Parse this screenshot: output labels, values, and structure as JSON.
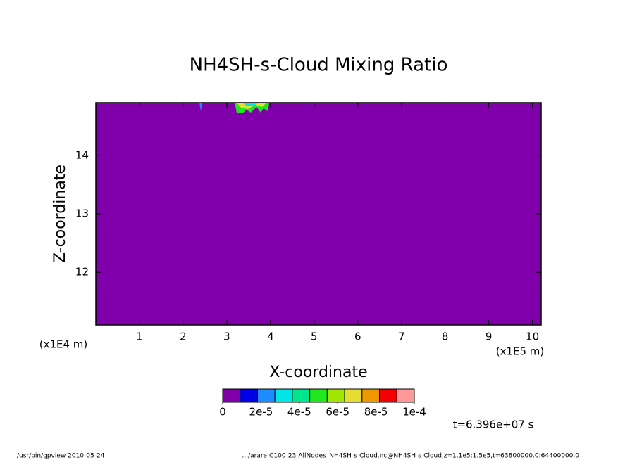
{
  "chart_data": {
    "type": "contour",
    "title": "NH4SH-s-Cloud Mixing Ratio",
    "x_label": "X-coordinate",
    "y_label": "Z-coordinate",
    "x_unit": "(x1E5 m)",
    "y_unit": "(x1E4 m)",
    "xlim": [
      0,
      10.2
    ],
    "ylim": [
      11.1,
      14.9
    ],
    "xticks": [
      1,
      2,
      3,
      4,
      5,
      6,
      7,
      8,
      9,
      10
    ],
    "yticks": [
      12,
      13,
      14
    ],
    "background_color": "#7f00aa",
    "colorbar": {
      "colors": [
        "#7f00aa",
        "#0000e6",
        "#1e8cff",
        "#00e6e6",
        "#00e68c",
        "#22e61e",
        "#a0e600",
        "#e6dc32",
        "#f09600",
        "#f00000",
        "#ff9999"
      ],
      "lim": [
        0,
        0.0001
      ],
      "ticks": [
        0,
        {
          "value": 2e-05,
          "label": "2e-5"
        },
        {
          "value": 4e-05,
          "label": "4e-5"
        },
        {
          "value": 6e-05,
          "label": "6e-5"
        },
        {
          "value": 8e-05,
          "label": "8e-5"
        },
        {
          "value": 0.0001,
          "label": "1e-4"
        }
      ]
    },
    "time_label": "t=6.396e+07 s",
    "footer_left": "/usr/bin/gpview   2010-05-24",
    "footer_right": ".../arare-C100-23-AllNodes_NH4SH-s-Cloud.nc@NH4SH-s-Cloud,z=1.1e5:1.5e5,t=63800000.0:64400000.0"
  }
}
